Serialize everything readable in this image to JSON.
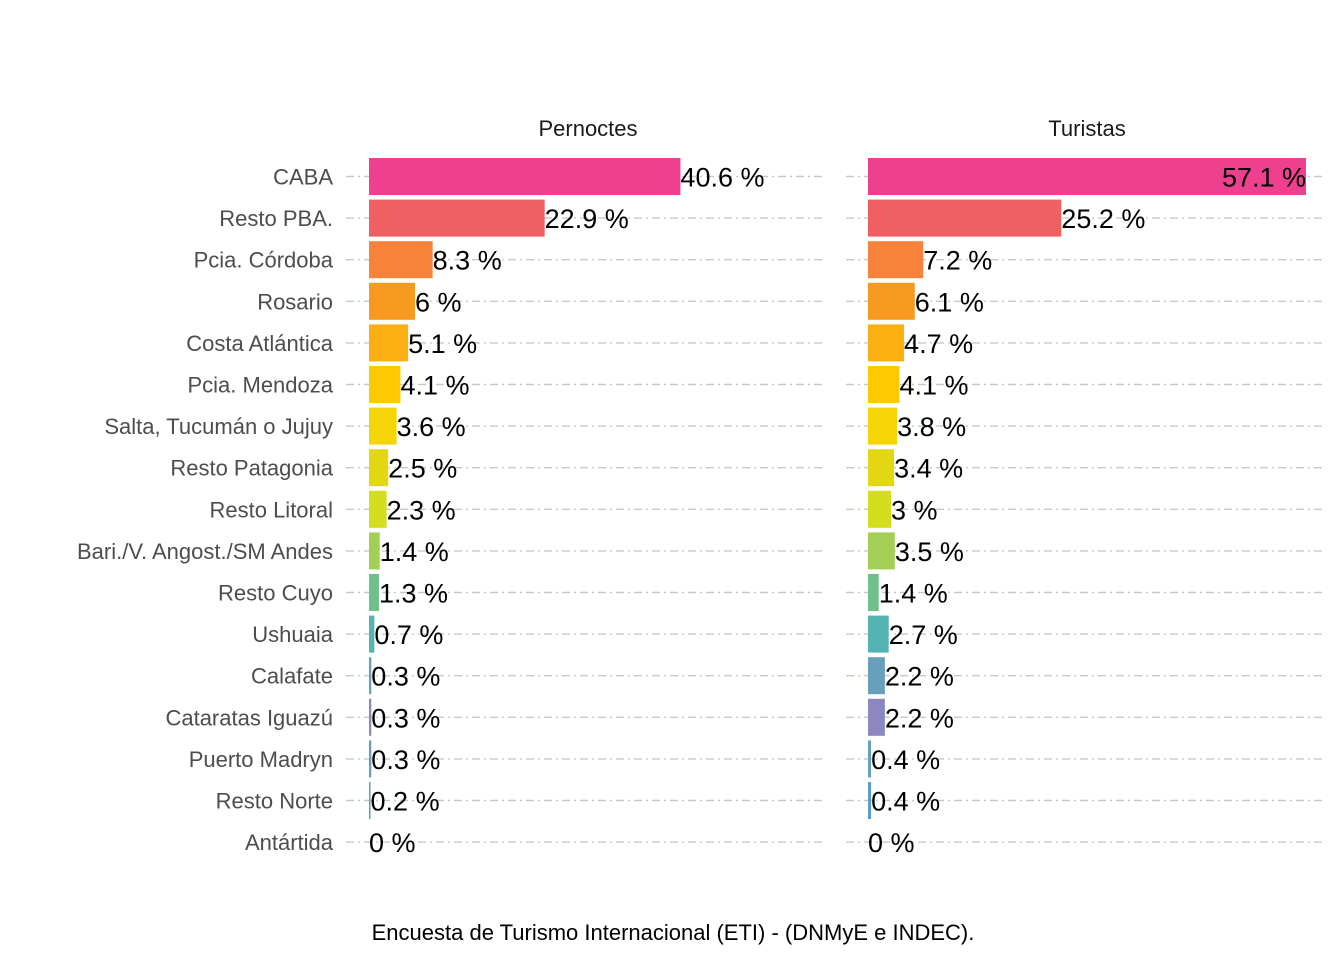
{
  "chart_data": {
    "type": "bar",
    "orientation": "horizontal",
    "categories": [
      "CABA",
      "Resto PBA.",
      "Pcia. Córdoba",
      "Rosario",
      "Costa Atlántica",
      "Pcia. Mendoza",
      "Salta, Tucumán o Jujuy",
      "Resto Patagonia",
      "Resto Litoral",
      "Bari./V. Angost./SM Andes",
      "Resto Cuyo",
      "Ushuaia",
      "Calafate",
      "Cataratas Iguazú",
      "Puerto Madryn",
      "Resto Norte",
      "Antártida"
    ],
    "colors": [
      "#ef3f8f",
      "#f05f62",
      "#f7823a",
      "#f89a1f",
      "#fbaf12",
      "#fec900",
      "#f5d508",
      "#e2d712",
      "#d4de1e",
      "#a3cf56",
      "#6fc08a",
      "#54b4b3",
      "#6a9fbc",
      "#8a88bf",
      "#6a9fbc",
      "#5b9fc8",
      "#8a88bf"
    ],
    "series": [
      {
        "name": "Pernoctes",
        "values": [
          40.6,
          22.9,
          8.3,
          6,
          5.1,
          4.1,
          3.6,
          2.5,
          2.3,
          1.4,
          1.3,
          0.7,
          0.3,
          0.3,
          0.3,
          0.2,
          0
        ],
        "labels": [
          "40.6 %",
          "22.9 %",
          "8.3 %",
          "6 %",
          "5.1 %",
          "4.1 %",
          "3.6 %",
          "2.5 %",
          "2.3 %",
          "1.4 %",
          "1.3 %",
          "0.7 %",
          "0.3 %",
          "0.3 %",
          "0.3 %",
          "0.2 %",
          "0 %"
        ]
      },
      {
        "name": "Turistas",
        "values": [
          57.1,
          25.2,
          7.2,
          6.1,
          4.7,
          4.1,
          3.8,
          3.4,
          3,
          3.5,
          1.4,
          2.7,
          2.2,
          2.2,
          0.4,
          0.4,
          0
        ],
        "labels": [
          "57.1 %",
          "25.2 %",
          "7.2 %",
          "6.1 %",
          "4.7 %",
          "4.1 %",
          "3.8 %",
          "3.4 %",
          "3 %",
          "3.5 %",
          "1.4 %",
          "2.7 %",
          "2.2 %",
          "2.2 %",
          "0.4 %",
          "0.4 %",
          "0 %"
        ]
      }
    ],
    "xlim": [
      0,
      57.1
    ],
    "grid": true,
    "legend": "none",
    "caption": "Encuesta de Turismo Internacional (ETI) - (DNMyE e INDEC)."
  }
}
